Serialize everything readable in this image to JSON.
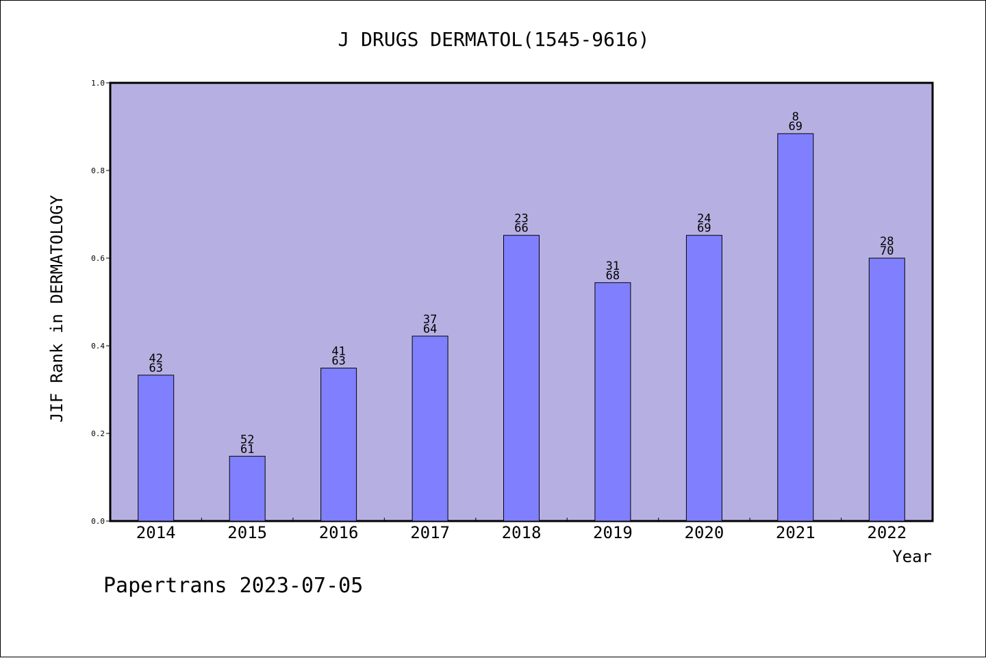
{
  "chart_data": {
    "type": "bar",
    "title": "J DRUGS DERMATOL(1545-9616)",
    "xlabel": "Year",
    "ylabel": "JIF Rank in DERMATOLOGY",
    "ylim": [
      0,
      1.0
    ],
    "yticks": [
      "0.0",
      "0.2",
      "0.4",
      "0.6",
      "0.8",
      "1.0"
    ],
    "grid": false,
    "categories": [
      "2014",
      "2015",
      "2016",
      "2017",
      "2018",
      "2019",
      "2020",
      "2021",
      "2022"
    ],
    "values": [
      0.333,
      0.148,
      0.349,
      0.422,
      0.652,
      0.544,
      0.652,
      0.884,
      0.6
    ],
    "rank": [
      "42",
      "52",
      "41",
      "37",
      "23",
      "31",
      "24",
      "8",
      "28"
    ],
    "total": [
      "63",
      "61",
      "63",
      "64",
      "66",
      "68",
      "69",
      "69",
      "70"
    ],
    "annotation": "Papertrans 2023-07-05"
  },
  "colors": {
    "plot_background": "#b6b0e2",
    "bar_fill": "#8080ff",
    "bar_stroke": "#000000",
    "text": "#000000"
  }
}
